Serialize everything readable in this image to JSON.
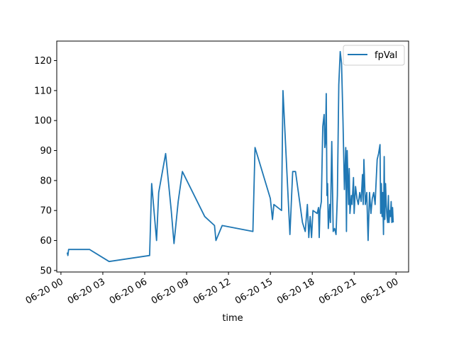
{
  "chart_data": {
    "type": "line",
    "title": "",
    "xlabel": "time",
    "ylabel": "",
    "x_ticks": [
      "06-20 00",
      "06-20 03",
      "06-20 06",
      "06-20 09",
      "06-20 12",
      "06-20 15",
      "06-20 18",
      "06-20 21",
      "06-21 00"
    ],
    "x_tick_hours": [
      0,
      3,
      6,
      9,
      12,
      15,
      18,
      21,
      24
    ],
    "xlim_hours": [
      -0.3,
      24.9
    ],
    "y_ticks": [
      50,
      60,
      70,
      80,
      90,
      100,
      110,
      120
    ],
    "ylim": [
      49.5,
      126.5
    ],
    "grid": false,
    "legend_position": "top-right",
    "series": [
      {
        "name": "fpVal",
        "color": "#1f77b4",
        "points": [
          [
            0.45,
            56
          ],
          [
            0.5,
            55
          ],
          [
            0.55,
            57
          ],
          [
            2.05,
            57
          ],
          [
            3.45,
            53
          ],
          [
            6.35,
            55
          ],
          [
            6.5,
            79
          ],
          [
            6.85,
            60
          ],
          [
            7.0,
            76
          ],
          [
            7.5,
            89
          ],
          [
            7.9,
            70
          ],
          [
            8.1,
            59
          ],
          [
            8.4,
            73
          ],
          [
            8.7,
            83
          ],
          [
            10.3,
            68
          ],
          [
            11.0,
            65
          ],
          [
            11.1,
            60
          ],
          [
            11.55,
            65
          ],
          [
            13.75,
            63
          ],
          [
            13.9,
            91
          ],
          [
            15.0,
            74
          ],
          [
            15.15,
            67
          ],
          [
            15.25,
            72
          ],
          [
            15.8,
            70
          ],
          [
            15.9,
            110
          ],
          [
            16.4,
            62
          ],
          [
            16.6,
            83
          ],
          [
            16.8,
            83
          ],
          [
            17.3,
            66
          ],
          [
            17.5,
            63
          ],
          [
            17.65,
            72
          ],
          [
            17.75,
            61
          ],
          [
            17.85,
            68
          ],
          [
            17.95,
            61
          ],
          [
            18.05,
            70
          ],
          [
            18.35,
            69
          ],
          [
            18.45,
            71
          ],
          [
            18.5,
            61
          ],
          [
            18.55,
            70
          ],
          [
            18.65,
            73
          ],
          [
            18.75,
            98
          ],
          [
            18.85,
            102
          ],
          [
            18.9,
            91
          ],
          [
            18.95,
            93
          ],
          [
            19.0,
            109
          ],
          [
            19.05,
            75
          ],
          [
            19.1,
            79
          ],
          [
            19.15,
            64
          ],
          [
            19.25,
            72
          ],
          [
            19.3,
            66
          ],
          [
            19.4,
            93
          ],
          [
            19.5,
            63
          ],
          [
            19.6,
            64
          ],
          [
            19.7,
            62
          ],
          [
            19.8,
            75
          ],
          [
            19.9,
            112
          ],
          [
            20.0,
            123
          ],
          [
            20.1,
            119
          ],
          [
            20.2,
            100
          ],
          [
            20.3,
            77
          ],
          [
            20.4,
            91
          ],
          [
            20.45,
            63
          ],
          [
            20.5,
            90
          ],
          [
            20.6,
            72
          ],
          [
            20.65,
            84
          ],
          [
            20.7,
            69
          ],
          [
            20.8,
            75
          ],
          [
            20.85,
            72
          ],
          [
            20.95,
            81
          ],
          [
            21.0,
            69
          ],
          [
            21.1,
            78
          ],
          [
            21.2,
            74
          ],
          [
            21.3,
            72
          ],
          [
            21.4,
            76
          ],
          [
            21.5,
            73
          ],
          [
            21.6,
            82
          ],
          [
            21.65,
            72
          ],
          [
            21.7,
            87
          ],
          [
            21.8,
            72
          ],
          [
            21.9,
            76
          ],
          [
            22.0,
            60
          ],
          [
            22.1,
            76
          ],
          [
            22.2,
            69
          ],
          [
            22.3,
            74
          ],
          [
            22.4,
            76
          ],
          [
            22.5,
            72
          ],
          [
            22.55,
            77
          ],
          [
            22.65,
            87
          ],
          [
            22.75,
            89
          ],
          [
            22.85,
            92
          ],
          [
            22.9,
            69
          ],
          [
            22.95,
            79
          ],
          [
            23.0,
            68
          ],
          [
            23.05,
            76
          ],
          [
            23.1,
            62
          ],
          [
            23.15,
            88
          ],
          [
            23.2,
            67
          ],
          [
            23.25,
            79
          ],
          [
            23.3,
            72
          ],
          [
            23.35,
            68
          ],
          [
            23.4,
            66
          ],
          [
            23.45,
            75
          ],
          [
            23.5,
            66
          ],
          [
            23.55,
            70
          ],
          [
            23.6,
            68
          ],
          [
            23.65,
            73
          ],
          [
            23.7,
            66
          ],
          [
            23.75,
            71
          ],
          [
            23.8,
            66
          ]
        ]
      }
    ]
  }
}
